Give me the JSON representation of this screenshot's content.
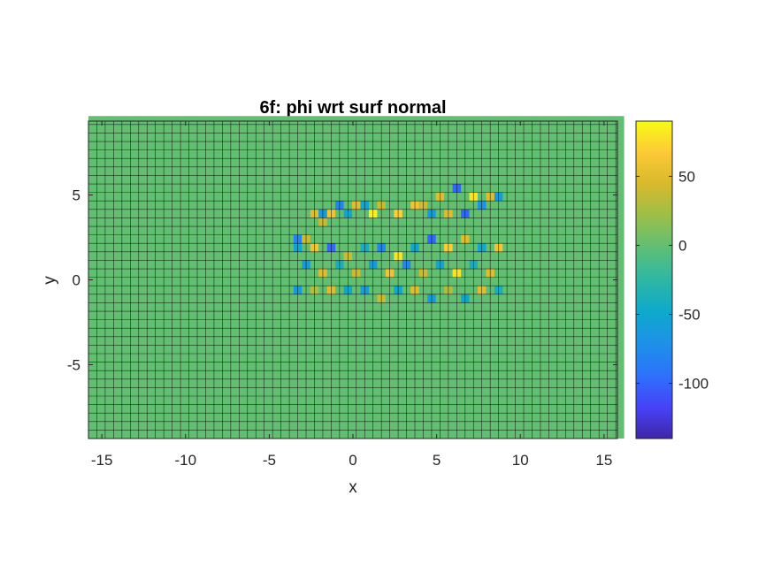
{
  "chart_data": {
    "type": "heatmap",
    "title": "6f: phi wrt surf normal",
    "xlabel": "x",
    "ylabel": "y",
    "xlim": [
      -15.8,
      15.8
    ],
    "ylim": [
      -9.35,
      9.35
    ],
    "xticks": [
      -15,
      -10,
      -5,
      0,
      5,
      10,
      15
    ],
    "xtick_labels": [
      "-15",
      "-10",
      "-5",
      "0",
      "5",
      "10",
      "15"
    ],
    "yticks": [
      -5,
      0,
      5
    ],
    "ytick_labels": [
      "-5",
      "0",
      "5"
    ],
    "grid": {
      "x_start": -15.8,
      "x_step": 0.5,
      "nx": 64,
      "y_start": -9.35,
      "y_step": 0.5,
      "ny": 38,
      "background_value": 0,
      "edge_color": "#000000"
    },
    "colorbar": {
      "clim": [
        -140,
        90
      ],
      "ticks": [
        50,
        0,
        -50,
        -100
      ],
      "tick_labels": [
        "50",
        "0",
        "-50",
        "-100"
      ],
      "colormap": "parula",
      "colormap_stops": [
        "#3e26a8",
        "#4743f8",
        "#2c72fc",
        "#1e91e8",
        "#0ea9cc",
        "#2eb7a4",
        "#5dbf75",
        "#9abf49",
        "#d6b92c",
        "#fcc936",
        "#f9fb15"
      ]
    },
    "cells": [
      {
        "x": -3.3,
        "y": 2.4,
        "v": -80
      },
      {
        "x": -2.8,
        "y": 2.4,
        "v": 40
      },
      {
        "x": -1.8,
        "y": 3.4,
        "v": 40
      },
      {
        "x": -1.3,
        "y": 3.9,
        "v": 60
      },
      {
        "x": -0.8,
        "y": 4.4,
        "v": -80
      },
      {
        "x": 0.2,
        "y": 4.4,
        "v": 50
      },
      {
        "x": 0.7,
        "y": 4.4,
        "v": -50
      },
      {
        "x": 1.7,
        "y": 4.4,
        "v": 40
      },
      {
        "x": 3.7,
        "y": 4.4,
        "v": 60
      },
      {
        "x": 4.2,
        "y": 4.4,
        "v": 40
      },
      {
        "x": 5.2,
        "y": 4.9,
        "v": 50
      },
      {
        "x": 6.2,
        "y": 5.4,
        "v": -100
      },
      {
        "x": 7.2,
        "y": 4.9,
        "v": 80
      },
      {
        "x": 8.2,
        "y": 4.9,
        "v": 50
      },
      {
        "x": 8.7,
        "y": 4.9,
        "v": -60
      },
      {
        "x": -2.3,
        "y": 3.9,
        "v": 50
      },
      {
        "x": -1.8,
        "y": 3.9,
        "v": -60
      },
      {
        "x": -0.3,
        "y": 3.9,
        "v": -50
      },
      {
        "x": 1.2,
        "y": 3.9,
        "v": 85
      },
      {
        "x": 2.7,
        "y": 3.9,
        "v": 70
      },
      {
        "x": 4.7,
        "y": 3.9,
        "v": -60
      },
      {
        "x": 5.7,
        "y": 3.9,
        "v": 50
      },
      {
        "x": 6.7,
        "y": 3.9,
        "v": -100
      },
      {
        "x": 7.7,
        "y": 4.4,
        "v": -70
      },
      {
        "x": -3.3,
        "y": 1.9,
        "v": -50
      },
      {
        "x": -2.3,
        "y": 1.9,
        "v": 60
      },
      {
        "x": -1.3,
        "y": 1.9,
        "v": -100
      },
      {
        "x": -0.3,
        "y": 1.4,
        "v": 40
      },
      {
        "x": 0.7,
        "y": 1.9,
        "v": -40
      },
      {
        "x": 1.7,
        "y": 1.9,
        "v": -80
      },
      {
        "x": 2.7,
        "y": 1.4,
        "v": 80
      },
      {
        "x": 3.7,
        "y": 1.9,
        "v": -50
      },
      {
        "x": 4.7,
        "y": 2.4,
        "v": -100
      },
      {
        "x": 5.7,
        "y": 1.9,
        "v": 70
      },
      {
        "x": 6.7,
        "y": 2.4,
        "v": 50
      },
      {
        "x": 7.7,
        "y": 1.9,
        "v": -50
      },
      {
        "x": 8.7,
        "y": 1.9,
        "v": 60
      },
      {
        "x": -2.8,
        "y": 0.9,
        "v": -60
      },
      {
        "x": -1.8,
        "y": 0.4,
        "v": 50
      },
      {
        "x": -0.8,
        "y": 0.9,
        "v": -40
      },
      {
        "x": 0.2,
        "y": 0.4,
        "v": 40
      },
      {
        "x": 1.2,
        "y": 0.9,
        "v": -60
      },
      {
        "x": 2.2,
        "y": 0.4,
        "v": 60
      },
      {
        "x": 3.2,
        "y": 0.9,
        "v": -80
      },
      {
        "x": 4.2,
        "y": 0.4,
        "v": 40
      },
      {
        "x": 5.2,
        "y": 0.9,
        "v": -50
      },
      {
        "x": 6.2,
        "y": 0.4,
        "v": 80
      },
      {
        "x": 7.2,
        "y": 0.9,
        "v": -40
      },
      {
        "x": 8.2,
        "y": 0.4,
        "v": 50
      },
      {
        "x": -3.3,
        "y": -0.6,
        "v": -60
      },
      {
        "x": -2.3,
        "y": -0.6,
        "v": 30
      },
      {
        "x": -1.3,
        "y": -0.6,
        "v": 50
      },
      {
        "x": -0.3,
        "y": -0.6,
        "v": -50
      },
      {
        "x": 0.7,
        "y": -0.6,
        "v": -60
      },
      {
        "x": 1.7,
        "y": -1.1,
        "v": 40
      },
      {
        "x": 2.7,
        "y": -0.6,
        "v": -50
      },
      {
        "x": 3.7,
        "y": -0.6,
        "v": 50
      },
      {
        "x": 4.7,
        "y": -1.1,
        "v": -60
      },
      {
        "x": 5.7,
        "y": -0.6,
        "v": 30
      },
      {
        "x": 6.7,
        "y": -1.1,
        "v": -50
      },
      {
        "x": 7.7,
        "y": -0.6,
        "v": 50
      },
      {
        "x": 8.7,
        "y": -0.6,
        "v": -40
      }
    ]
  }
}
